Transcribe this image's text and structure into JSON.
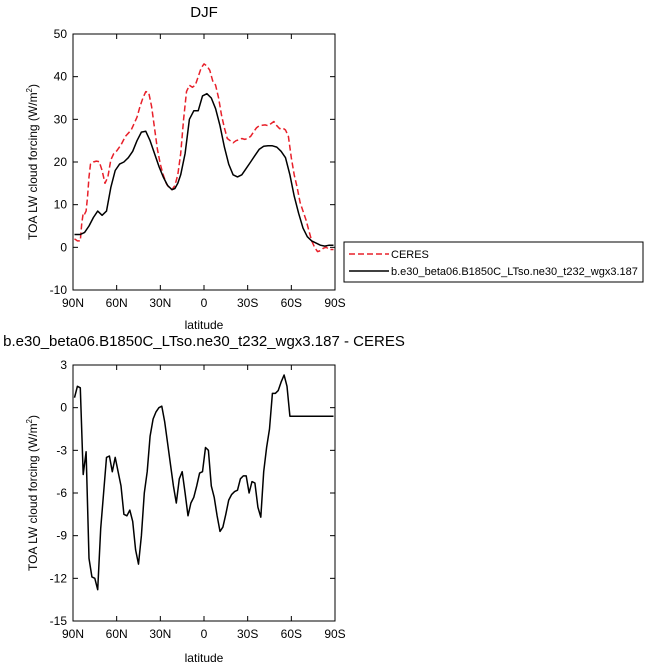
{
  "chart_data": [
    {
      "type": "line",
      "title": "DJF",
      "xlabel": "latitude",
      "ylabel": "TOA LW cloud forcing (W/m²)",
      "ylabel_text": "TOA LW cloud forcing (W/m",
      "ylabel_sup": "2",
      "ylabel_close": ")",
      "xlim": [
        90,
        -90
      ],
      "ylim": [
        -10,
        50
      ],
      "x_ticks": [
        90,
        60,
        30,
        0,
        -30,
        -60,
        -90
      ],
      "x_tick_labels": [
        "90N",
        "60N",
        "30N",
        "0",
        "30S",
        "60S",
        "90S"
      ],
      "y_ticks": [
        -10,
        0,
        10,
        20,
        30,
        40,
        50
      ],
      "y_tick_labels": [
        "-10",
        "0",
        "10",
        "20",
        "30",
        "40",
        "50"
      ],
      "legend_placement": "right",
      "series": [
        {
          "name": "CERES",
          "color": "#e8202a",
          "dash": "dashed",
          "x": [
            89,
            87,
            85,
            84,
            83,
            82,
            81,
            80,
            79,
            78,
            76,
            74,
            72,
            70,
            68,
            66,
            64,
            62,
            60,
            57,
            54,
            50,
            46,
            44,
            42,
            40,
            38,
            36,
            34,
            32,
            30,
            28,
            26,
            24,
            22,
            20,
            18,
            16,
            14,
            12,
            10,
            8,
            6,
            4,
            2,
            0,
            -2,
            -4,
            -6,
            -8,
            -10,
            -12,
            -14,
            -16,
            -18,
            -20,
            -22,
            -24,
            -26,
            -28,
            -30,
            -32,
            -34,
            -36,
            -38,
            -40,
            -42,
            -44,
            -46,
            -48,
            -50,
            -52,
            -54,
            -56,
            -58,
            -60,
            -62,
            -64,
            -66,
            -68,
            -70,
            -72,
            -74,
            -76,
            -78,
            -80,
            -82,
            -84,
            -86,
            -88,
            -89
          ],
          "values": [
            2.0,
            1.5,
            1.5,
            5.5,
            8.0,
            7.8,
            8.5,
            12.0,
            16.5,
            19.5,
            20.0,
            20.2,
            20.1,
            18.0,
            15.0,
            16.5,
            20.5,
            22.0,
            22.6,
            24.0,
            26.0,
            27.5,
            30.5,
            33.0,
            35.0,
            36.5,
            36.3,
            33.0,
            28.0,
            23.0,
            19.5,
            17.0,
            15.0,
            14.0,
            13.5,
            14.5,
            17.0,
            22.0,
            30.0,
            36.5,
            38.0,
            37.5,
            38.0,
            40.0,
            42.0,
            43.0,
            42.5,
            41.5,
            39.0,
            38.0,
            35.0,
            31.0,
            28.0,
            25.5,
            25.0,
            24.5,
            25.0,
            25.2,
            25.5,
            25.3,
            25.5,
            26.0,
            27.0,
            28.0,
            28.5,
            28.6,
            28.7,
            28.5,
            29.0,
            29.5,
            28.5,
            27.8,
            28.0,
            27.5,
            26.0,
            21.0,
            17.0,
            14.0,
            10.5,
            8.5,
            6.5,
            4.0,
            1.5,
            0.0,
            -1.0,
            -0.8,
            -0.2,
            0.0,
            -0.5,
            -0.5,
            -0.5
          ]
        },
        {
          "name": "b.e30_beta06.B1850C_LTso.ne30_t232_wgx3.187",
          "color": "#000000",
          "dash": "solid",
          "x": [
            89,
            85,
            82,
            79,
            76,
            73,
            70,
            67,
            64,
            61,
            58,
            55,
            52,
            49,
            46,
            43,
            40,
            37,
            34,
            31,
            28,
            25,
            22,
            20,
            18,
            16,
            13,
            10,
            7,
            4,
            1,
            -2,
            -5,
            -8,
            -11,
            -14,
            -17,
            -20,
            -23,
            -26,
            -29,
            -32,
            -35,
            -38,
            -41,
            -44,
            -47,
            -50,
            -53,
            -56,
            -59,
            -62,
            -65,
            -68,
            -71,
            -74,
            -77,
            -80,
            -83,
            -86,
            -89
          ],
          "values": [
            3.0,
            3.0,
            3.5,
            5.0,
            7.0,
            8.5,
            7.5,
            8.5,
            14.0,
            18.0,
            19.5,
            20.0,
            21.0,
            22.5,
            25.0,
            27.0,
            27.2,
            25.0,
            22.0,
            19.0,
            16.5,
            14.5,
            13.5,
            13.8,
            15.0,
            17.0,
            22.0,
            30.0,
            32.0,
            32.0,
            35.5,
            36.0,
            35.0,
            32.5,
            28.5,
            23.5,
            19.5,
            17.0,
            16.5,
            17.0,
            18.5,
            20.0,
            21.5,
            23.0,
            23.7,
            23.8,
            23.8,
            23.5,
            22.5,
            21.0,
            17.0,
            12.0,
            8.0,
            4.5,
            2.5,
            1.5,
            1.0,
            0.5,
            0.3,
            0.5,
            0.5
          ]
        }
      ]
    },
    {
      "type": "line",
      "title": "b.e30_beta06.B1850C_LTso.ne30_t232_wgx3.187 - CERES",
      "xlabel": "latitude",
      "ylabel": "TOA LW cloud forcing (W/m²)",
      "ylabel_text": "TOA LW cloud forcing (W/m",
      "ylabel_sup": "2",
      "ylabel_close": ")",
      "xlim": [
        90,
        -90
      ],
      "ylim": [
        -15,
        3
      ],
      "x_ticks": [
        90,
        60,
        30,
        0,
        -30,
        -60,
        -90
      ],
      "x_tick_labels": [
        "90N",
        "60N",
        "30N",
        "0",
        "30S",
        "60S",
        "90S"
      ],
      "y_ticks": [
        -15,
        -12,
        -9,
        -6,
        -3,
        0,
        3
      ],
      "y_tick_labels": [
        "-15",
        "-12",
        "-9",
        "-6",
        "-3",
        "0",
        "3"
      ],
      "series": [
        {
          "name": "b.e30_beta06.B1850C_LTso.ne30_t232_wgx3.187 - CERES",
          "color": "#000000",
          "dash": "solid",
          "x": [
            89,
            87,
            85,
            83,
            81,
            79,
            77,
            75,
            73,
            71,
            69,
            67,
            65,
            63,
            61,
            59,
            57,
            55,
            53,
            51,
            49,
            47,
            45,
            43,
            41,
            39,
            37,
            35,
            33,
            31,
            29,
            27,
            25,
            23,
            21,
            19,
            17,
            15,
            13,
            11,
            9,
            7,
            5,
            3,
            1,
            -1,
            -3,
            -5,
            -7,
            -9,
            -11,
            -13,
            -15,
            -17,
            -19,
            -21,
            -23,
            -25,
            -27,
            -29,
            -31,
            -33,
            -35,
            -37,
            -39,
            -41,
            -43,
            -45,
            -47,
            -49,
            -51,
            -53,
            -55,
            -57,
            -59,
            -61,
            -63,
            -65,
            -67,
            -69,
            -71,
            -73,
            -75,
            -77,
            -79,
            -81,
            -83,
            -85,
            -87,
            -89
          ],
          "values": [
            0.7,
            1.5,
            1.4,
            -4.7,
            -3.1,
            -10.6,
            -11.9,
            -12.0,
            -12.8,
            -8.5,
            -6.0,
            -3.5,
            -3.4,
            -4.5,
            -3.5,
            -4.5,
            -5.5,
            -7.5,
            -7.6,
            -7.2,
            -8.0,
            -10.0,
            -11.0,
            -9.0,
            -6.0,
            -4.5,
            -2.0,
            -0.8,
            -0.3,
            0.0,
            0.1,
            -1.0,
            -2.5,
            -4.0,
            -5.5,
            -6.7,
            -5.0,
            -4.5,
            -6.0,
            -7.6,
            -6.7,
            -6.3,
            -5.5,
            -4.6,
            -4.5,
            -2.8,
            -3.0,
            -5.5,
            -6.3,
            -7.6,
            -8.7,
            -8.4,
            -7.5,
            -6.5,
            -6.1,
            -5.9,
            -5.8,
            -5.0,
            -4.8,
            -4.8,
            -6.0,
            -5.2,
            -5.3,
            -7.0,
            -7.7,
            -4.5,
            -2.8,
            -1.5,
            1.0,
            1.0,
            1.2,
            1.8,
            2.3,
            1.5,
            -0.6,
            -0.6,
            -0.6,
            -0.6,
            -0.6,
            -0.6,
            -0.6,
            -0.6,
            -0.6,
            -0.6,
            -0.6,
            -0.6,
            -0.6,
            -0.6,
            -0.6,
            -0.6
          ]
        }
      ]
    }
  ]
}
